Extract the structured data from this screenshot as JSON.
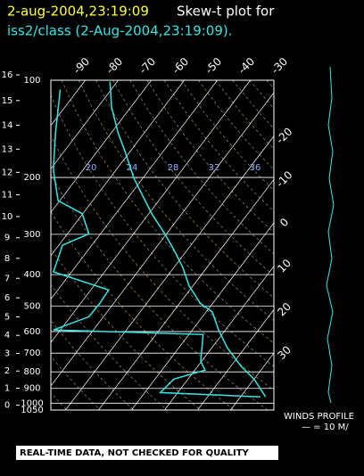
{
  "chart_data": {
    "type": "skewt",
    "title_date": "2-aug-2004,23:19:09",
    "title": "Skew-t plot for",
    "subtitle": "iss2/class (2-Aug-2004,23:19:09).",
    "tticks": [
      -90,
      -80,
      -70,
      -60,
      -50,
      -40,
      -30,
      -20,
      -10,
      0,
      10,
      20,
      30
    ],
    "plim": [
      100,
      1050
    ],
    "pticks": [
      100,
      200,
      300,
      400,
      500,
      600,
      700,
      800,
      900,
      1000,
      1050
    ],
    "height_ticks": [
      0,
      1,
      2,
      3,
      4,
      5,
      6,
      7,
      8,
      9,
      10,
      11,
      12,
      13,
      14,
      15,
      16
    ],
    "isopleth_labels": [
      20,
      24,
      28,
      32,
      36
    ],
    "series": [
      {
        "name": "temperature",
        "color": "#33e6e6",
        "pressure": [
          956,
          842,
          766,
          674,
          593,
          522,
          491,
          432,
          380,
          335,
          299,
          259,
          201,
          166,
          146,
          121,
          101
        ],
        "values": [
          37.6,
          30.0,
          22.9,
          14.7,
          7.9,
          1.9,
          -3.7,
          -11.3,
          -17.3,
          -24.1,
          -30.5,
          -39.1,
          -52.7,
          -61.6,
          -67.8,
          -75.9,
          -82.2
        ]
      },
      {
        "name": "dewpoint",
        "color": "#33e6e6",
        "pressure": [
          956,
          927,
          842,
          790,
          741,
          613,
          593,
          540,
          491,
          446,
          392,
          324,
          299,
          259,
          236,
          189,
          146,
          107
        ],
        "values": [
          36,
          4.7,
          5.7,
          13.1,
          9.7,
          4.3,
          -42.1,
          -34.4,
          -34.2,
          -34.6,
          -55.5,
          -58.9,
          -53.5,
          -60.2,
          -70.5,
          -79.1,
          -86.8,
          -95.4
        ]
      }
    ],
    "winds_label": "WINDS PROFILE",
    "winds_scale": "— = 10 M/",
    "footer": "REAL-TIME DATA, NOT CHECKED FOR QUALITY"
  }
}
